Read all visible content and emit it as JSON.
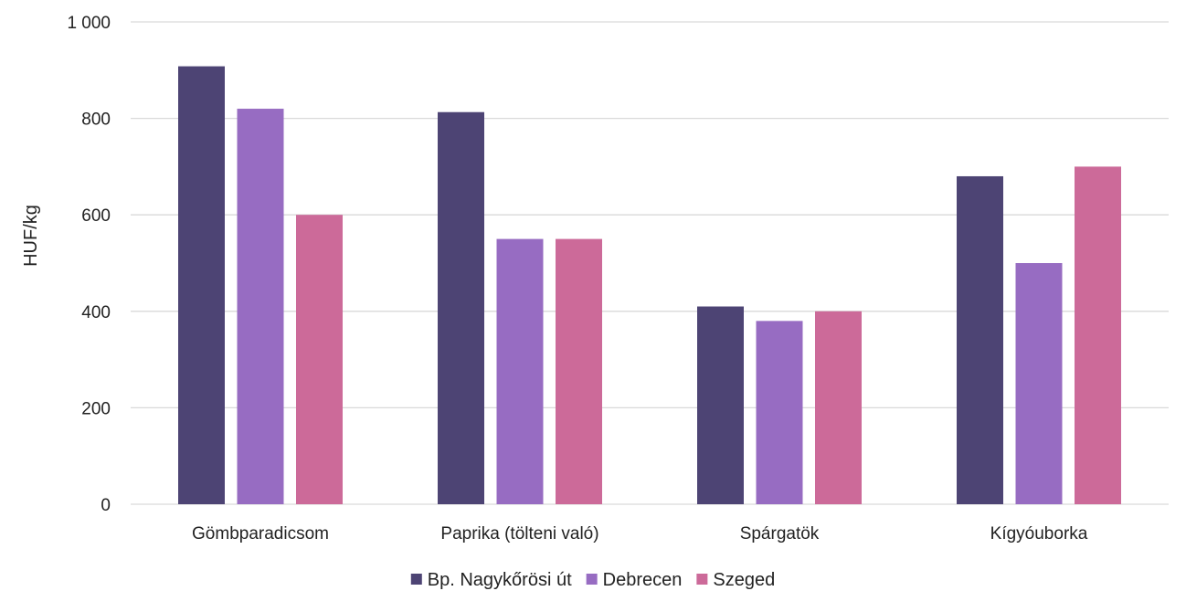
{
  "chart_data": {
    "type": "bar",
    "categories": [
      "Gömbparadicsom",
      "Paprika (tölteni való)",
      "Spárgatök",
      "Kígyóuborka"
    ],
    "series": [
      {
        "name": "Bp. Nagykőrösi út",
        "color": "#4d4474",
        "values": [
          908,
          813,
          410,
          680
        ]
      },
      {
        "name": "Debrecen",
        "color": "#976cc2",
        "values": [
          820,
          550,
          380,
          500
        ]
      },
      {
        "name": "Szeged",
        "color": "#cc6a99",
        "values": [
          600,
          550,
          400,
          700
        ]
      }
    ],
    "ylabel": "HUF/kg",
    "xlabel": "",
    "ylim": [
      0,
      1000
    ],
    "yticks": [
      0,
      200,
      400,
      600,
      800,
      1000
    ],
    "ytick_labels": [
      "0",
      "200",
      "400",
      "600",
      "800",
      "1 000"
    ],
    "grid": true,
    "legend_position": "bottom"
  }
}
